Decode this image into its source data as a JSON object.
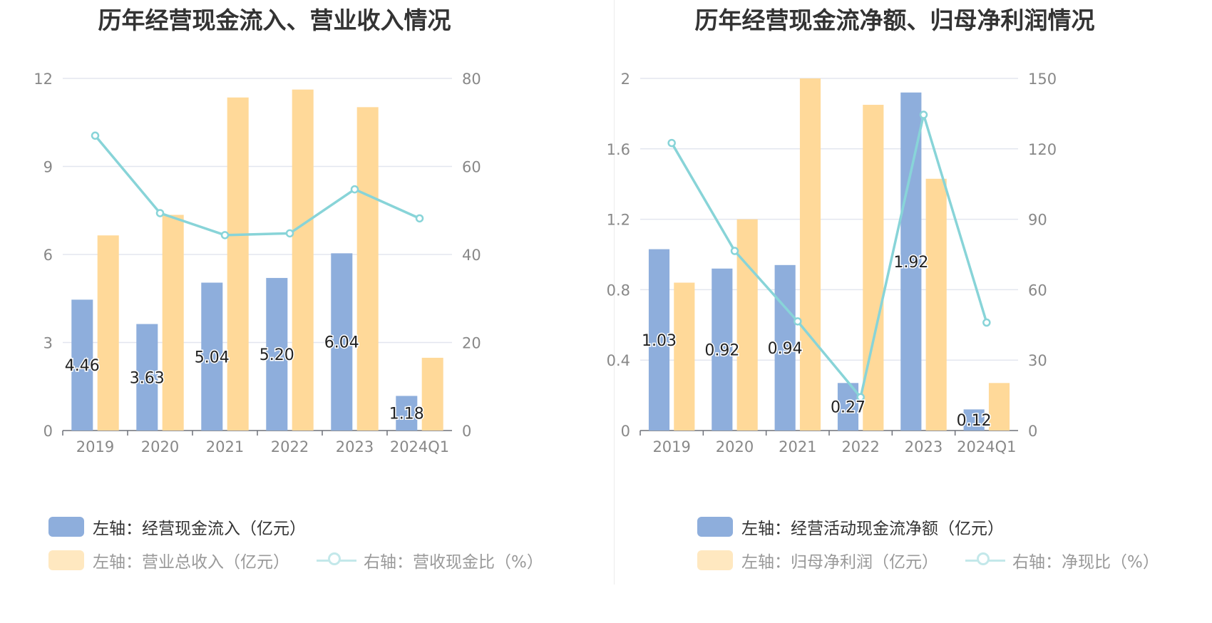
{
  "colors": {
    "bar_primary": "#8eaedc",
    "bar_secondary": "#ffd999",
    "line": "#88d4d8",
    "axis_text": "#888888",
    "grid": "#e3e6ef",
    "legend_muted_primary": "#ffe8c0",
    "legend_muted_line": "#c3e8ea"
  },
  "chart_data": [
    {
      "type": "bar",
      "title": "历年经营现金流入、营业收入情况",
      "categories": [
        "2019",
        "2020",
        "2021",
        "2022",
        "2023",
        "2024Q1"
      ],
      "ylim_left": [
        0,
        12
      ],
      "yticks_left": [
        "0",
        "3",
        "6",
        "9",
        "12"
      ],
      "ylim_right": [
        0,
        80
      ],
      "yticks_right": [
        "0",
        "20",
        "40",
        "60",
        "80"
      ],
      "series": [
        {
          "name": "左轴：经营现金流入（亿元）",
          "axis": "left",
          "type": "bar",
          "values": [
            4.46,
            3.63,
            5.04,
            5.2,
            6.04,
            1.18
          ],
          "labels": [
            "4.46",
            "3.63",
            "5.04",
            "5.20",
            "6.04",
            "1.18"
          ]
        },
        {
          "name": "左轴：营业总收入（亿元）",
          "axis": "left",
          "type": "bar",
          "values": [
            6.65,
            7.35,
            11.35,
            11.62,
            11.02,
            2.48
          ]
        },
        {
          "name": "右轴：营收现金比（%）",
          "axis": "right",
          "type": "line",
          "values": [
            67.0,
            49.4,
            44.4,
            44.8,
            54.8,
            48.2
          ]
        }
      ],
      "legend": [
        "左轴：经营现金流入（亿元）",
        "左轴：营业总收入（亿元）",
        "右轴：营收现金比（%）"
      ],
      "grid": true,
      "legend_position": "bottom"
    },
    {
      "type": "bar",
      "title": "历年经营现金流净额、归母净利润情况",
      "categories": [
        "2019",
        "2020",
        "2021",
        "2022",
        "2023",
        "2024Q1"
      ],
      "ylim_left": [
        0,
        2
      ],
      "yticks_left": [
        "0",
        "0.4",
        "0.8",
        "1.2",
        "1.6",
        "2"
      ],
      "ylim_right": [
        0,
        150
      ],
      "yticks_right": [
        "0",
        "30",
        "60",
        "90",
        "120",
        "150"
      ],
      "series": [
        {
          "name": "左轴：经营活动现金流净额（亿元）",
          "axis": "left",
          "type": "bar",
          "values": [
            1.03,
            0.92,
            0.94,
            0.27,
            1.92,
            0.12
          ],
          "labels": [
            "1.03",
            "0.92",
            "0.94",
            "0.27",
            "1.92",
            "0.12"
          ]
        },
        {
          "name": "左轴：归母净利润（亿元）",
          "axis": "left",
          "type": "bar",
          "values": [
            0.84,
            1.2,
            2.0,
            1.85,
            1.43,
            0.27
          ]
        },
        {
          "name": "右轴：净现比（%）",
          "axis": "right",
          "type": "line",
          "values": [
            122.5,
            76.5,
            46.5,
            14.2,
            134.5,
            46.0
          ]
        }
      ],
      "legend": [
        "左轴：经营活动现金流净额（亿元）",
        "左轴：归母净利润（亿元）",
        "右轴：净现比（%）"
      ],
      "grid": true,
      "legend_position": "bottom"
    }
  ]
}
